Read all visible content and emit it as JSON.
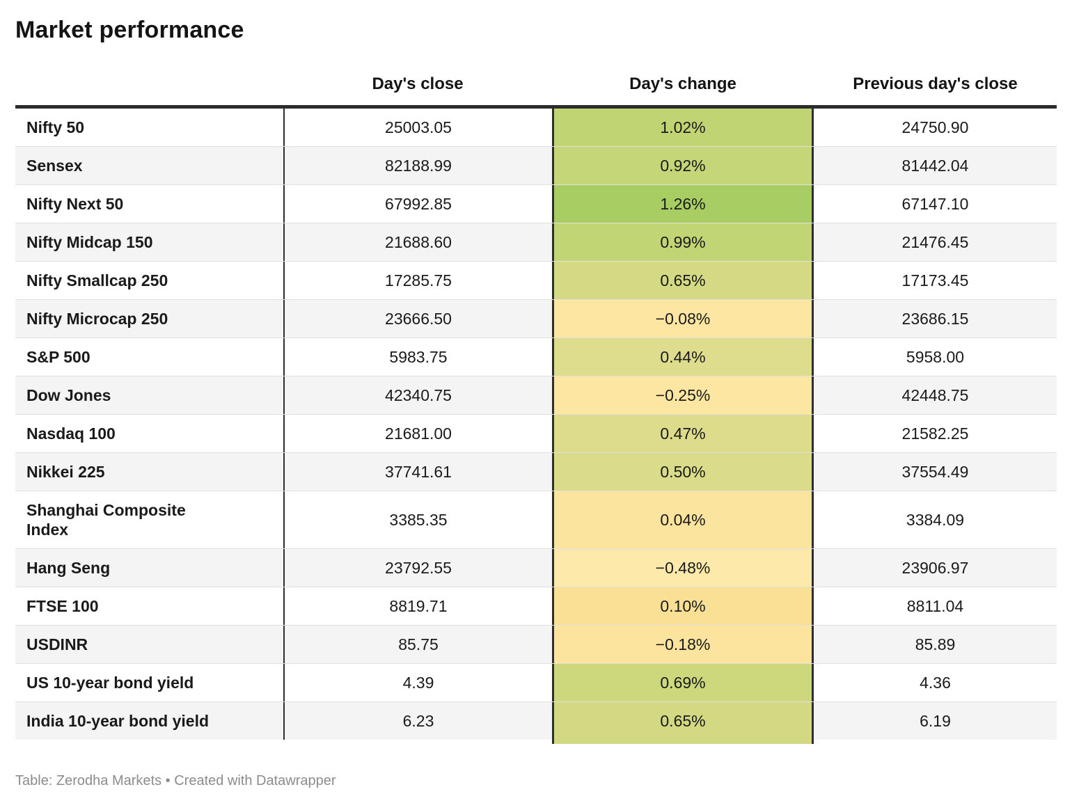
{
  "title": "Market performance",
  "footer": "Table: Zerodha Markets • Created with Datawrapper",
  "colors": {
    "header_rule": "#2b2b2b",
    "row_stripe": "#f4f4f4",
    "row_divider": "#e0e0e0",
    "column_border": "#2e2e2e",
    "footer_text": "#8c8c8c"
  },
  "chart_data": {
    "type": "table",
    "title": "Market performance",
    "columns": [
      "",
      "Day's close",
      "Day's change",
      "Previous day's close"
    ],
    "rows": [
      {
        "label": "Nifty 50",
        "close": "25003.05",
        "change": "1.02%",
        "change_color": "#c0d473",
        "prev": "24750.90"
      },
      {
        "label": "Sensex",
        "close": "82188.99",
        "change": "0.92%",
        "change_color": "#c4d677",
        "prev": "81442.04"
      },
      {
        "label": "Nifty Next 50",
        "close": "67992.85",
        "change": "1.26%",
        "change_color": "#a8cd62",
        "prev": "67147.10"
      },
      {
        "label": "Nifty Midcap 150",
        "close": "21688.60",
        "change": "0.99%",
        "change_color": "#c1d574",
        "prev": "21476.45"
      },
      {
        "label": "Nifty Smallcap 250",
        "close": "17285.75",
        "change": "0.65%",
        "change_color": "#d4da84",
        "prev": "17173.45"
      },
      {
        "label": "Nifty Microcap 250",
        "close": "23666.50",
        "change": "−0.08%",
        "change_color": "#fce6a1",
        "prev": "23686.15"
      },
      {
        "label": "S&P 500",
        "close": "5983.75",
        "change": "0.44%",
        "change_color": "#dedd8d",
        "prev": "5958.00"
      },
      {
        "label": "Dow Jones",
        "close": "42340.75",
        "change": "−0.25%",
        "change_color": "#fce6a2",
        "prev": "42448.75"
      },
      {
        "label": "Nasdaq 100",
        "close": "21681.00",
        "change": "0.47%",
        "change_color": "#dcdc8b",
        "prev": "21582.25"
      },
      {
        "label": "Nikkei 225",
        "close": "37741.61",
        "change": "0.50%",
        "change_color": "#dadc89",
        "prev": "37554.49"
      },
      {
        "label": "Shanghai Composite Index",
        "close": "3385.35",
        "change": "0.04%",
        "change_color": "#fbe49d",
        "prev": "3384.09"
      },
      {
        "label": "Hang Seng",
        "close": "23792.55",
        "change": "−0.48%",
        "change_color": "#fdeaaa",
        "prev": "23906.97"
      },
      {
        "label": "FTSE 100",
        "close": "8819.71",
        "change": "0.10%",
        "change_color": "#fae095",
        "prev": "8811.04"
      },
      {
        "label": "USDINR",
        "close": "85.75",
        "change": "−0.18%",
        "change_color": "#fce49e",
        "prev": "85.89"
      },
      {
        "label": "US 10-year bond yield",
        "close": "4.39",
        "change": "0.69%",
        "change_color": "#cdd87d",
        "prev": "4.36"
      },
      {
        "label": "India 10-year bond yield",
        "close": "6.23",
        "change": "0.65%",
        "change_color": "#d2d982",
        "prev": "6.19"
      }
    ]
  }
}
